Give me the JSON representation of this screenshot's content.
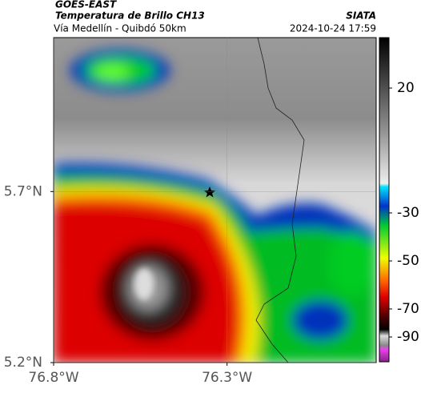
{
  "header": {
    "satellite": "GOES-EAST",
    "product": "Temperatura de Brillo CH13",
    "route": "Vía Medellín - Quibdó 50km",
    "source": "SIATA",
    "timestamp": "2024-10-24 17:59"
  },
  "map": {
    "xlim": [
      -76.8,
      -75.87
    ],
    "ylim": [
      5.2,
      6.15
    ],
    "xticks": [
      {
        "value": -76.8,
        "label": "76.8°W"
      },
      {
        "value": -76.3,
        "label": "76.3°W"
      }
    ],
    "yticks": [
      {
        "value": 5.2,
        "label": "5.2°N"
      },
      {
        "value": 5.7,
        "label": "5.7°N"
      }
    ]
  },
  "colorbar": {
    "ticks": [
      20,
      -30,
      -50,
      -70,
      -90
    ]
  }
}
